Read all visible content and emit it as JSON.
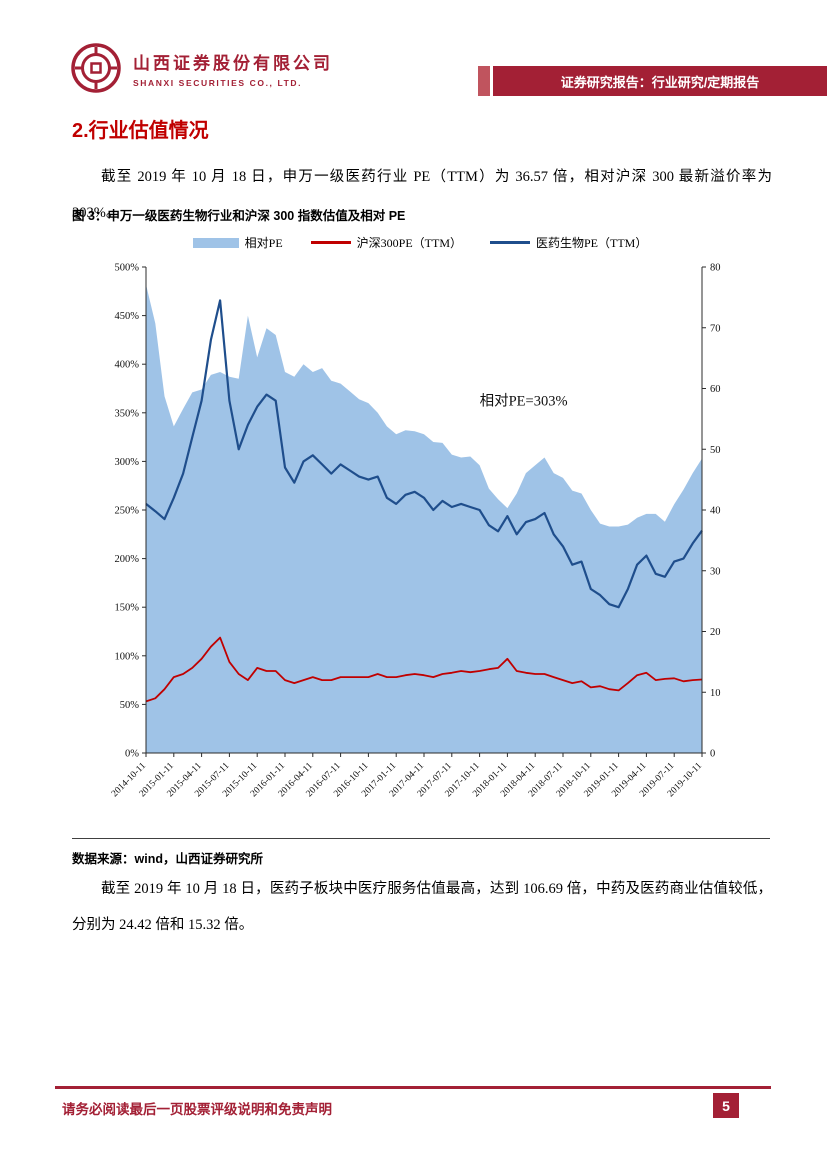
{
  "header": {
    "company_name": "山西证券股份有限公司",
    "company_name_en": "SHANXI SECURITIES CO., LTD.",
    "banner": "证券研究报告：行业研究/定期报告"
  },
  "section": {
    "title": "2.行业估值情况",
    "para1": "截至 2019 年 10 月 18 日，申万一级医药行业 PE（TTM）为 36.57 倍，相对沪深 300 最新溢价率为 303%。",
    "figure_caption": "图 3：申万一级医药生物行业和沪深 300 指数估值及相对 PE",
    "source": "数据来源：wind，山西证券研究所",
    "para2": "截至 2019 年 10 月 18 日，医药子板块中医疗服务估值最高，达到 106.69 倍，中药及医药商业估值较低，分别为 24.42 倍和 15.32 倍。"
  },
  "footer": {
    "disclaimer": "请务必阅读最后一页股票评级说明和免责声明",
    "page_number": "5"
  },
  "colors": {
    "brand_red": "#A32035",
    "section_title_red": "#C00000",
    "area_blue": "#9FC3E7",
    "line_red": "#C00000",
    "line_dark_blue": "#1F4E8C"
  },
  "chart_data": {
    "type": "area",
    "subtype": "area (left %) + two lines (right PE)",
    "legend": [
      "相对PE",
      "沪深300PE（TTM）",
      "医药生物PE（TTM）"
    ],
    "annotation": "相对PE=303%",
    "left_axis": {
      "min": 0,
      "max": 500,
      "step": 50,
      "format": "percent"
    },
    "right_axis": {
      "min": 0,
      "max": 80,
      "step": 10
    },
    "grid": false,
    "legend_position": "top-center",
    "x_note": "monthly points from 2014-10 to 2019-10; tick labels every 3 months",
    "x_tick_labels": [
      "2014-10-11",
      "2015-01-11",
      "2015-04-11",
      "2015-07-11",
      "2015-10-11",
      "2016-01-11",
      "2016-04-11",
      "2016-07-11",
      "2016-10-11",
      "2017-01-11",
      "2017-04-11",
      "2017-07-11",
      "2017-10-11",
      "2018-01-11",
      "2018-04-11",
      "2018-07-11",
      "2018-10-11",
      "2019-01-11",
      "2019-04-11",
      "2019-07-11",
      "2019-10-11"
    ],
    "series": [
      {
        "name": "相对PE",
        "type": "area",
        "axis": "left",
        "color": "#9FC3E7",
        "values": [
          482,
          442,
          367,
          336,
          354,
          371,
          374,
          389,
          392,
          387,
          385,
          450,
          407,
          437,
          430,
          392,
          387,
          400,
          392,
          396,
          383,
          380,
          372,
          364,
          360,
          350,
          336,
          328,
          332,
          331,
          328,
          320,
          319,
          307,
          304,
          305,
          296,
          272,
          261,
          252,
          267,
          288,
          296,
          304,
          288,
          283,
          270,
          267,
          250,
          236,
          233,
          233,
          235,
          242,
          246,
          246,
          238,
          256,
          271,
          288,
          303
        ]
      },
      {
        "name": "沪深300PE（TTM）",
        "type": "line",
        "axis": "right",
        "color": "#C00000",
        "values": [
          8.5,
          9.0,
          10.5,
          12.5,
          13.0,
          14.0,
          15.5,
          17.5,
          19.0,
          15.0,
          13.0,
          12.0,
          14.0,
          13.5,
          13.5,
          12.0,
          11.5,
          12.0,
          12.5,
          12.0,
          12.0,
          12.5,
          12.5,
          12.5,
          12.5,
          13.0,
          12.5,
          12.5,
          12.8,
          13.0,
          12.8,
          12.5,
          13.0,
          13.2,
          13.5,
          13.3,
          13.5,
          13.8,
          14.0,
          15.5,
          13.5,
          13.2,
          13.0,
          13.0,
          12.5,
          12.0,
          11.5,
          11.8,
          10.8,
          11.0,
          10.5,
          10.3,
          11.5,
          12.8,
          13.2,
          12.0,
          12.2,
          12.3,
          11.8,
          12.0,
          12.1
        ]
      },
      {
        "name": "医药生物PE（TTM）",
        "type": "line",
        "axis": "right",
        "color": "#1F4E8C",
        "values": [
          41.0,
          39.8,
          38.5,
          42.0,
          46.0,
          52.0,
          58.0,
          68.0,
          74.5,
          58.0,
          50.0,
          54.0,
          57.0,
          59.0,
          58.0,
          47.0,
          44.5,
          48.0,
          49.0,
          47.5,
          46.0,
          47.5,
          46.5,
          45.5,
          45.0,
          45.5,
          42.0,
          41.0,
          42.5,
          43.0,
          42.0,
          40.0,
          41.5,
          40.5,
          41.0,
          40.5,
          40.0,
          37.5,
          36.5,
          39.0,
          36.0,
          38.0,
          38.5,
          39.5,
          36.0,
          34.0,
          31.0,
          31.5,
          27.0,
          26.0,
          24.5,
          24.0,
          27.0,
          31.0,
          32.5,
          29.5,
          29.0,
          31.5,
          32.0,
          34.5,
          36.6
        ]
      }
    ]
  }
}
